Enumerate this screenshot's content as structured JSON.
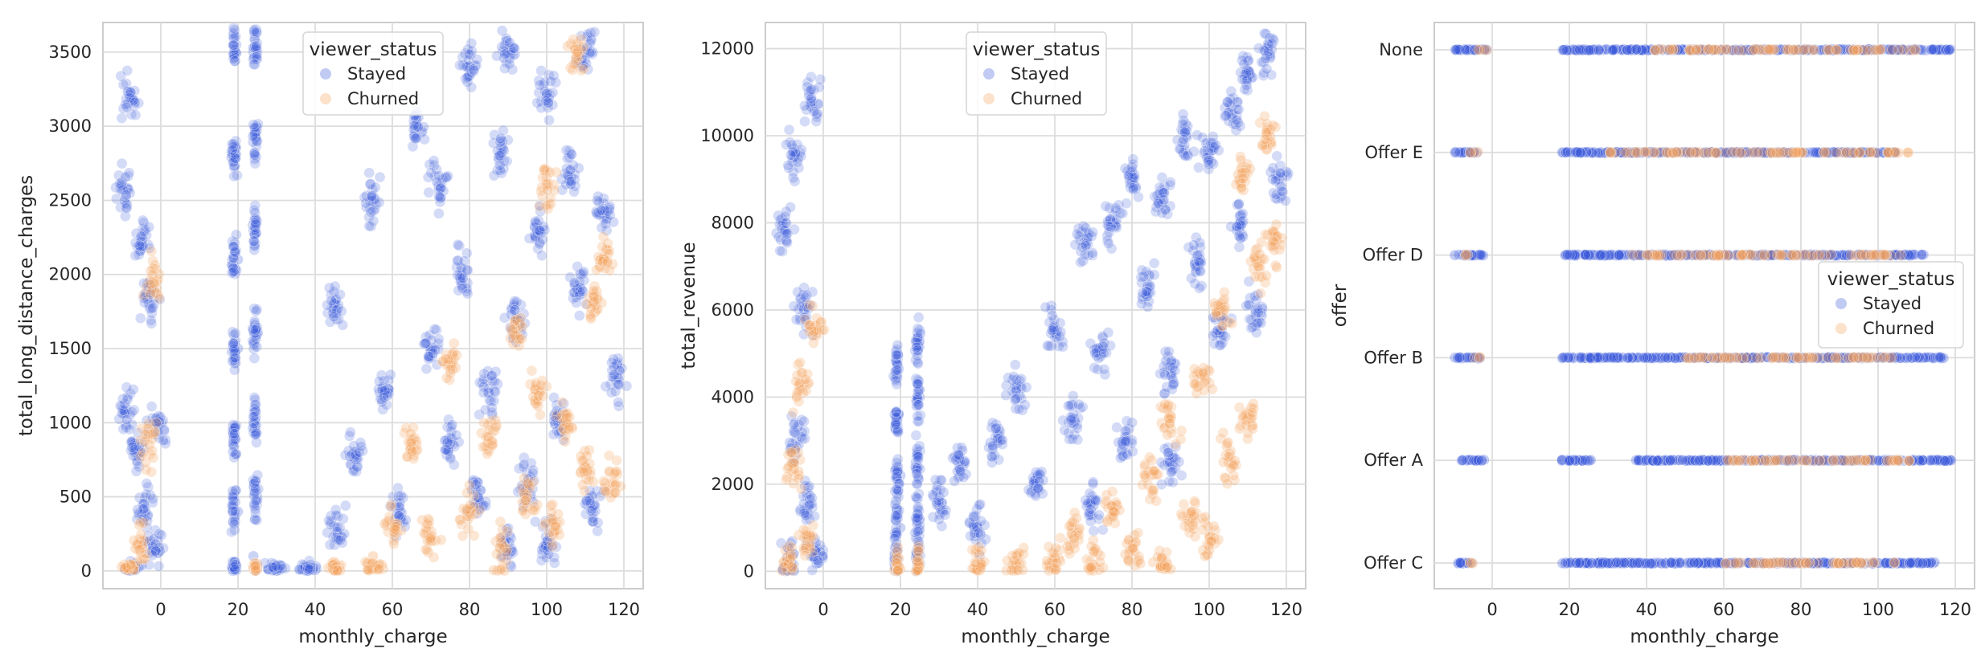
{
  "colors": {
    "stayed": "#3b5bdb",
    "churned": "#f5a35c"
  },
  "chart_data": [
    {
      "type": "scatter",
      "xlabel": "monthly_charge",
      "ylabel": "total_long_distance_charges",
      "xlim": [
        -15,
        125
      ],
      "ylim": [
        -120,
        3700
      ],
      "xticks": [
        0,
        20,
        40,
        60,
        80,
        100,
        120
      ],
      "yticks": [
        0,
        500,
        1000,
        1500,
        2000,
        2500,
        3000,
        3500
      ],
      "grid": true,
      "legend": {
        "title": "viewer_status",
        "placement": "top-center",
        "entries": [
          "Stayed",
          "Churned"
        ]
      },
      "series": [
        {
          "name": "Stayed",
          "points": [
            [
              -10,
              2600
            ],
            [
              -8,
              3200
            ],
            [
              -5,
              2250
            ],
            [
              -3,
              1800
            ],
            [
              -9,
              1100
            ],
            [
              -6,
              800
            ],
            [
              -4,
              400
            ],
            [
              -2,
              150
            ],
            [
              -7,
              50
            ],
            [
              -1,
              1000
            ],
            [
              19,
              3550
            ],
            [
              19,
              2800
            ],
            [
              20,
              2100
            ],
            [
              20,
              1500
            ],
            [
              19,
              900
            ],
            [
              20,
              400
            ],
            [
              19,
              60
            ],
            [
              24,
              3500
            ],
            [
              25,
              2900
            ],
            [
              24,
              2300
            ],
            [
              25,
              1600
            ],
            [
              24,
              1000
            ],
            [
              25,
              500
            ],
            [
              24,
              100
            ],
            [
              30,
              0
            ],
            [
              38,
              0
            ],
            [
              45,
              300
            ],
            [
              45,
              1800
            ],
            [
              50,
              800
            ],
            [
              55,
              2500
            ],
            [
              58,
              1200
            ],
            [
              62,
              400
            ],
            [
              66,
              3000
            ],
            [
              70,
              1500
            ],
            [
              72,
              2600
            ],
            [
              75,
              900
            ],
            [
              78,
              2000
            ],
            [
              80,
              3400
            ],
            [
              82,
              500
            ],
            [
              85,
              1200
            ],
            [
              88,
              2800
            ],
            [
              90,
              3500
            ],
            [
              92,
              1700
            ],
            [
              95,
              600
            ],
            [
              98,
              2300
            ],
            [
              100,
              3200
            ],
            [
              103,
              1000
            ],
            [
              106,
              2700
            ],
            [
              108,
              1900
            ],
            [
              110,
              3500
            ],
            [
              112,
              400
            ],
            [
              115,
              2400
            ],
            [
              118,
              1300
            ],
            [
              100,
              200
            ],
            [
              90,
              150
            ]
          ]
        },
        {
          "name": "Churned",
          "points": [
            [
              -2,
              1950
            ],
            [
              -3,
              850
            ],
            [
              -5,
              200
            ],
            [
              -8,
              30
            ],
            [
              24,
              10
            ],
            [
              45,
              60
            ],
            [
              55,
              100
            ],
            [
              60,
              300
            ],
            [
              65,
              800
            ],
            [
              70,
              200
            ],
            [
              75,
              1400
            ],
            [
              80,
              400
            ],
            [
              85,
              900
            ],
            [
              88,
              150
            ],
            [
              92,
              1600
            ],
            [
              95,
              500
            ],
            [
              98,
              1200
            ],
            [
              100,
              2600
            ],
            [
              102,
              300
            ],
            [
              105,
              1000
            ],
            [
              108,
              3500
            ],
            [
              110,
              700
            ],
            [
              112,
              1800
            ],
            [
              115,
              2100
            ],
            [
              117,
              600
            ]
          ]
        }
      ]
    },
    {
      "type": "scatter",
      "xlabel": "monthly_charge",
      "ylabel": "total_revenue",
      "xlim": [
        -15,
        125
      ],
      "ylim": [
        -400,
        12600
      ],
      "xticks": [
        0,
        20,
        40,
        60,
        80,
        100,
        120
      ],
      "yticks": [
        0,
        2000,
        4000,
        6000,
        8000,
        10000,
        12000
      ],
      "grid": true,
      "legend": {
        "title": "viewer_status",
        "placement": "top-center",
        "entries": [
          "Stayed",
          "Churned"
        ]
      },
      "series": [
        {
          "name": "Stayed",
          "points": [
            [
              -10,
              7800
            ],
            [
              -8,
              9500
            ],
            [
              -5,
              6000
            ],
            [
              -3,
              10800
            ],
            [
              -7,
              3000
            ],
            [
              -4,
              1500
            ],
            [
              -2,
              500
            ],
            [
              -9,
              200
            ],
            [
              19,
              4800
            ],
            [
              19,
              3500
            ],
            [
              20,
              2200
            ],
            [
              20,
              1000
            ],
            [
              19,
              200
            ],
            [
              24,
              5300
            ],
            [
              25,
              4000
            ],
            [
              24,
              2500
            ],
            [
              25,
              1200
            ],
            [
              24,
              300
            ],
            [
              30,
              1500
            ],
            [
              35,
              2500
            ],
            [
              40,
              1000
            ],
            [
              45,
              3000
            ],
            [
              50,
              4200
            ],
            [
              55,
              2000
            ],
            [
              60,
              5500
            ],
            [
              65,
              3500
            ],
            [
              68,
              7500
            ],
            [
              72,
              5000
            ],
            [
              75,
              8000
            ],
            [
              78,
              3000
            ],
            [
              80,
              9000
            ],
            [
              84,
              6500
            ],
            [
              88,
              8500
            ],
            [
              90,
              4500
            ],
            [
              94,
              10000
            ],
            [
              97,
              7000
            ],
            [
              100,
              9500
            ],
            [
              103,
              5500
            ],
            [
              106,
              10500
            ],
            [
              108,
              8000
            ],
            [
              110,
              11500
            ],
            [
              112,
              6000
            ],
            [
              115,
              12000
            ],
            [
              118,
              9000
            ],
            [
              70,
              1500
            ],
            [
              90,
              2500
            ]
          ]
        },
        {
          "name": "Churned",
          "points": [
            [
              -8,
              2500
            ],
            [
              -6,
              4300
            ],
            [
              -4,
              800
            ],
            [
              -2,
              5500
            ],
            [
              -9,
              200
            ],
            [
              20,
              50
            ],
            [
              25,
              100
            ],
            [
              40,
              50
            ],
            [
              50,
              200
            ],
            [
              60,
              300
            ],
            [
              65,
              800
            ],
            [
              70,
              150
            ],
            [
              75,
              1500
            ],
            [
              80,
              500
            ],
            [
              85,
              2200
            ],
            [
              88,
              100
            ],
            [
              90,
              3500
            ],
            [
              95,
              1200
            ],
            [
              98,
              4500
            ],
            [
              100,
              800
            ],
            [
              103,
              6000
            ],
            [
              105,
              2500
            ],
            [
              108,
              9000
            ],
            [
              110,
              3500
            ],
            [
              113,
              7000
            ],
            [
              115,
              10000
            ],
            [
              117,
              7500
            ]
          ]
        }
      ]
    },
    {
      "type": "scatter",
      "xlabel": "monthly_charge",
      "ylabel": "offer",
      "xlim": [
        -15,
        125
      ],
      "categories": [
        "None",
        "Offer E",
        "Offer D",
        "Offer B",
        "Offer A",
        "Offer C"
      ],
      "xticks": [
        0,
        20,
        40,
        60,
        80,
        100,
        120
      ],
      "grid": true,
      "legend": {
        "title": "viewer_status",
        "placement": "center-right",
        "entries": [
          "Stayed",
          "Churned"
        ]
      },
      "series": [
        {
          "name": "Stayed",
          "ranges": [
            {
              "category": "None",
              "segments": [
                [
                  -10,
                  -1
                ],
                [
                  18,
                  119
                ]
              ]
            },
            {
              "category": "Offer E",
              "segments": [
                [
                  -10,
                  -3
                ],
                [
                  18,
                  105
                ]
              ]
            },
            {
              "category": "Offer D",
              "segments": [
                [
                  -10,
                  -2
                ],
                [
                  18,
                  112
                ]
              ]
            },
            {
              "category": "Offer B",
              "segments": [
                [
                  -10,
                  -3
                ],
                [
                  18,
                  117
                ]
              ]
            },
            {
              "category": "Offer A",
              "segments": [
                [
                  -8,
                  -2
                ],
                [
                  18,
                  26
                ],
                [
                  37,
                  119
                ]
              ]
            },
            {
              "category": "Offer C",
              "segments": [
                [
                  -9,
                  -5
                ],
                [
                  18,
                  115
                ]
              ]
            }
          ]
        },
        {
          "name": "Churned",
          "ranges": [
            {
              "category": "None",
              "segments": [
                [
                  -4,
                  -1
                ],
                [
                  40,
                  110
                ]
              ]
            },
            {
              "category": "Offer E",
              "segments": [
                [
                  -6,
                  -3
                ],
                [
                  30,
                  108
                ]
              ]
            },
            {
              "category": "Offer D",
              "segments": [
                [
                  -7,
                  -5
                ],
                [
                  35,
                  106
                ]
              ]
            },
            {
              "category": "Offer B",
              "segments": [
                [
                  -5,
                  -3
                ],
                [
                  50,
                  105
                ]
              ]
            },
            {
              "category": "Offer A",
              "segments": [
                [
                  60,
                  110
                ]
              ]
            },
            {
              "category": "Offer C",
              "segments": [
                [
                  -7,
                  -5
                ],
                [
                  60,
                  105
                ]
              ]
            }
          ]
        }
      ]
    }
  ]
}
